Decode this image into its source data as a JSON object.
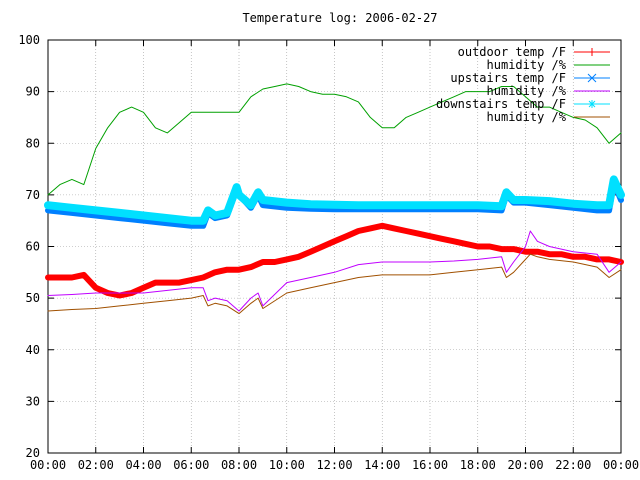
{
  "chart_data": {
    "type": "line",
    "title": "Temperature log: 2006-02-27",
    "xlabel": "",
    "ylabel": "",
    "xlim": [
      0,
      24
    ],
    "ylim": [
      20,
      100
    ],
    "grid": true,
    "legend_placement": "top-right",
    "x_ticks": [
      "00:00",
      "02:00",
      "04:00",
      "06:00",
      "08:00",
      "10:00",
      "12:00",
      "14:00",
      "16:00",
      "18:00",
      "20:00",
      "22:00",
      "00:00"
    ],
    "y_ticks": [
      "20",
      "30",
      "40",
      "50",
      "60",
      "70",
      "80",
      "90",
      "100"
    ],
    "series": [
      {
        "name": "outdoor temp /F",
        "color": "#ff0000",
        "marker": "plus",
        "x": [
          0,
          0.5,
          1,
          1.5,
          2,
          2.5,
          3,
          3.5,
          4,
          4.5,
          5,
          5.5,
          6,
          6.5,
          7,
          7.5,
          8,
          8.5,
          9,
          9.5,
          10,
          10.5,
          11,
          11.5,
          12,
          12.5,
          13,
          13.5,
          14,
          14.5,
          15,
          15.5,
          16,
          16.5,
          17,
          17.5,
          18,
          18.5,
          19,
          19.5,
          20,
          20.5,
          21,
          21.5,
          22,
          22.5,
          23,
          23.5,
          24
        ],
        "y": [
          54,
          54,
          54,
          54.5,
          52,
          51,
          50.5,
          51,
          52,
          53,
          53,
          53,
          53.5,
          54,
          55,
          55.5,
          55.5,
          56,
          57,
          57,
          57.5,
          58,
          59,
          60,
          61,
          62,
          63,
          63.5,
          64,
          63.5,
          63,
          62.5,
          62,
          61.5,
          61,
          60.5,
          60,
          60,
          59.5,
          59.5,
          59,
          59,
          58.5,
          58.5,
          58,
          58,
          57.5,
          57.5,
          57
        ]
      },
      {
        "name": "humidity /%",
        "color": "#00a000",
        "marker": "none",
        "x": [
          0,
          0.5,
          1,
          1.5,
          2,
          2.5,
          3,
          3.5,
          4,
          4.5,
          5,
          5.5,
          6,
          6.5,
          7,
          7.5,
          8,
          8.5,
          9,
          9.5,
          10,
          10.5,
          11,
          11.5,
          12,
          12.5,
          13,
          13.5,
          14,
          14.5,
          15,
          15.5,
          16,
          16.5,
          17,
          17.5,
          18,
          18.5,
          19,
          19.5,
          20,
          20.5,
          21,
          21.5,
          22,
          22.5,
          23,
          23.5,
          24
        ],
        "y": [
          70,
          72,
          73,
          72,
          79,
          83,
          86,
          87,
          86,
          83,
          82,
          84,
          86,
          86,
          86,
          86,
          86,
          89,
          90.5,
          91,
          91.5,
          91,
          90,
          89.5,
          89.5,
          89,
          88,
          85,
          83,
          83,
          85,
          86,
          87,
          88,
          89,
          90,
          90,
          90,
          91,
          91,
          89,
          87,
          87,
          86,
          85,
          84.5,
          83,
          80,
          82
        ]
      },
      {
        "name": "upstairs temp /F",
        "color": "#0080ff",
        "marker": "cross",
        "x": [
          0,
          1,
          2,
          3,
          4,
          5,
          6,
          6.5,
          6.7,
          7,
          7.5,
          7.9,
          8,
          8.5,
          8.8,
          9,
          10,
          11,
          12,
          13,
          14,
          15,
          16,
          17,
          18,
          19,
          19.2,
          19.5,
          20,
          21,
          22,
          23,
          23.5,
          23.7,
          24
        ],
        "y": [
          67,
          66.5,
          66,
          65.5,
          65,
          64.5,
          64,
          64,
          66.5,
          65.5,
          66,
          71,
          70,
          67.5,
          70,
          68,
          67.5,
          67.3,
          67.2,
          67.2,
          67.2,
          67.2,
          67.2,
          67.2,
          67.2,
          67,
          70,
          68.5,
          68.5,
          68,
          67.5,
          67,
          67,
          72.5,
          69
        ]
      },
      {
        "name": "humidity /%",
        "color": "#c000ff",
        "marker": "none",
        "x": [
          0,
          1,
          2,
          3,
          4,
          5,
          6,
          6.5,
          6.7,
          7,
          7.5,
          8,
          8.5,
          8.8,
          9,
          10,
          11,
          12,
          13,
          14,
          15,
          16,
          17,
          18,
          19,
          19.2,
          19.5,
          20,
          20.2,
          20.5,
          21,
          22,
          23,
          23.5,
          24
        ],
        "y": [
          50.5,
          50.7,
          51,
          51,
          51,
          51.5,
          52,
          52,
          49.5,
          50,
          49.5,
          47.5,
          50,
          51,
          48.5,
          53,
          54,
          55,
          56.5,
          57,
          57,
          57,
          57.2,
          57.5,
          58,
          55,
          57,
          60,
          63,
          61,
          60,
          59,
          58.5,
          55,
          57
        ]
      },
      {
        "name": "downstairs temp /F",
        "color": "#00e0ff",
        "marker": "star",
        "x": [
          0,
          1,
          2,
          3,
          4,
          5,
          6,
          6.5,
          6.7,
          7,
          7.5,
          7.9,
          8,
          8.5,
          8.8,
          9,
          10,
          11,
          12,
          13,
          14,
          15,
          16,
          17,
          18,
          19,
          19.2,
          19.5,
          20,
          21,
          22,
          23,
          23.5,
          23.7,
          24
        ],
        "y": [
          68,
          67.5,
          67,
          66.5,
          66,
          65.5,
          65,
          65,
          67,
          66,
          66.5,
          71.5,
          70,
          68,
          70.5,
          69,
          68.5,
          68.2,
          68.1,
          68,
          68,
          68,
          68,
          68,
          68,
          67.8,
          70.5,
          69,
          69,
          68.8,
          68.3,
          68,
          68,
          73,
          70
        ]
      },
      {
        "name": "humidity /%",
        "color": "#a05000",
        "marker": "none",
        "x": [
          0,
          1,
          2,
          3,
          4,
          5,
          6,
          6.5,
          6.7,
          7,
          7.5,
          8,
          8.5,
          8.8,
          9,
          10,
          11,
          12,
          13,
          14,
          15,
          16,
          17,
          18,
          19,
          19.2,
          19.5,
          20,
          20.2,
          20.5,
          21,
          22,
          23,
          23.5,
          24
        ],
        "y": [
          47.5,
          47.8,
          48,
          48.5,
          49,
          49.5,
          50,
          50.5,
          48.5,
          49,
          48.5,
          47,
          49,
          50,
          48,
          51,
          52,
          53,
          54,
          54.5,
          54.5,
          54.5,
          55,
          55.5,
          56,
          54,
          55,
          57.5,
          58.5,
          58,
          57.5,
          57,
          56,
          54,
          55.5
        ]
      }
    ]
  }
}
